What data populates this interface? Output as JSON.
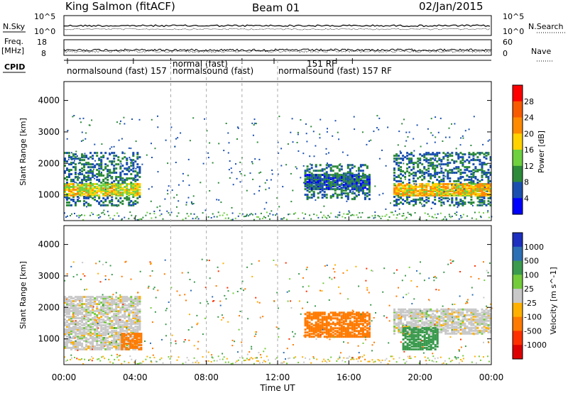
{
  "header": {
    "station": "King Salmon (fitACF)",
    "beam": "Beam 01",
    "date": "02/Jan/2015"
  },
  "aux_panels": {
    "nsky_label": "N.Sky",
    "nsky_ticks": [
      "10^5",
      "10^0"
    ],
    "nsearch_label": "N.Search",
    "nsearch_ticks": [
      "10^5",
      "10^0"
    ],
    "freq_label_1": "Freq.",
    "freq_label_2": "[MHz]",
    "freq_ticks": [
      "18",
      "8"
    ],
    "nave_label": "Nave",
    "nave_ticks": [
      "60",
      "0"
    ],
    "cpid_label": "CPID",
    "cpid_text_1": "normalsound (fast) 157",
    "cpid_text_2": "normal (fast)",
    "cpid_text_3": "normalsound (fast)",
    "cpid_text_4": "151 RF",
    "cpid_text_5": "normalsound (fast) 157 RF"
  },
  "time_axis": {
    "label": "Time UT",
    "ticks": [
      "00:00",
      "04:00",
      "08:00",
      "12:00",
      "16:00",
      "20:00",
      "00:00"
    ]
  },
  "power_colorbar": {
    "title": "Power [dB]",
    "ticks": [
      "28",
      "24",
      "20",
      "16",
      "12",
      "8",
      "4"
    ],
    "colors": [
      "#ff0000",
      "#f85a00",
      "#ff8a00",
      "#ffd200",
      "#6fd13f",
      "#2c8a3a",
      "#1a4fb0",
      "#0000ff"
    ]
  },
  "velocity_colorbar": {
    "title": "Velocity [m s^-1]",
    "ticks": [
      "1000",
      "500",
      "100",
      "25",
      "-25",
      "-100",
      "-500",
      "-1000"
    ],
    "colors": [
      "#1c2fbf",
      "#2d6fb4",
      "#3a9a4d",
      "#74cc3a",
      "#c8c8c8",
      "#ffb000",
      "#ff7a00",
      "#ff3000",
      "#dd0000"
    ]
  },
  "chart_data": [
    {
      "type": "heatmap",
      "quantity": "Power",
      "ylabel": "Slant Range [km]",
      "xlabel": "",
      "yticks": [
        1000,
        2000,
        3000,
        4000
      ],
      "ylim": [
        180,
        4600
      ],
      "xlim": [
        0,
        24
      ],
      "regions": [
        {
          "t": [
            0,
            4.3
          ],
          "r": [
            700,
            2400
          ],
          "peak": [
            1000,
            1400
          ],
          "level_db": 22
        },
        {
          "t": [
            13.5,
            17.2
          ],
          "r": [
            900,
            2000
          ],
          "peak": [
            1200,
            1700
          ],
          "level_db": 12
        },
        {
          "t": [
            18.5,
            24
          ],
          "r": [
            700,
            2400
          ],
          "peak": [
            1000,
            1400
          ],
          "level_db": 24
        }
      ]
    },
    {
      "type": "heatmap",
      "quantity": "Velocity",
      "ylabel": "Slant Range [km]",
      "xlabel": "Time UT",
      "yticks": [
        1000,
        2000,
        3000,
        4000
      ],
      "ylim": [
        180,
        4600
      ],
      "xlim": [
        0,
        24
      ],
      "regions": [
        {
          "t": [
            0,
            4.3
          ],
          "r": [
            700,
            2400
          ],
          "velocity": 0
        },
        {
          "t": [
            3.2,
            4.4
          ],
          "r": [
            700,
            1200
          ],
          "velocity": -150
        },
        {
          "t": [
            13.5,
            17.2
          ],
          "r": [
            1100,
            1900
          ],
          "velocity": -150
        },
        {
          "t": [
            18.5,
            24
          ],
          "r": [
            1200,
            2000
          ],
          "velocity": 0
        },
        {
          "t": [
            19.0,
            21.0
          ],
          "r": [
            700,
            1400
          ],
          "velocity": 200
        }
      ]
    }
  ]
}
